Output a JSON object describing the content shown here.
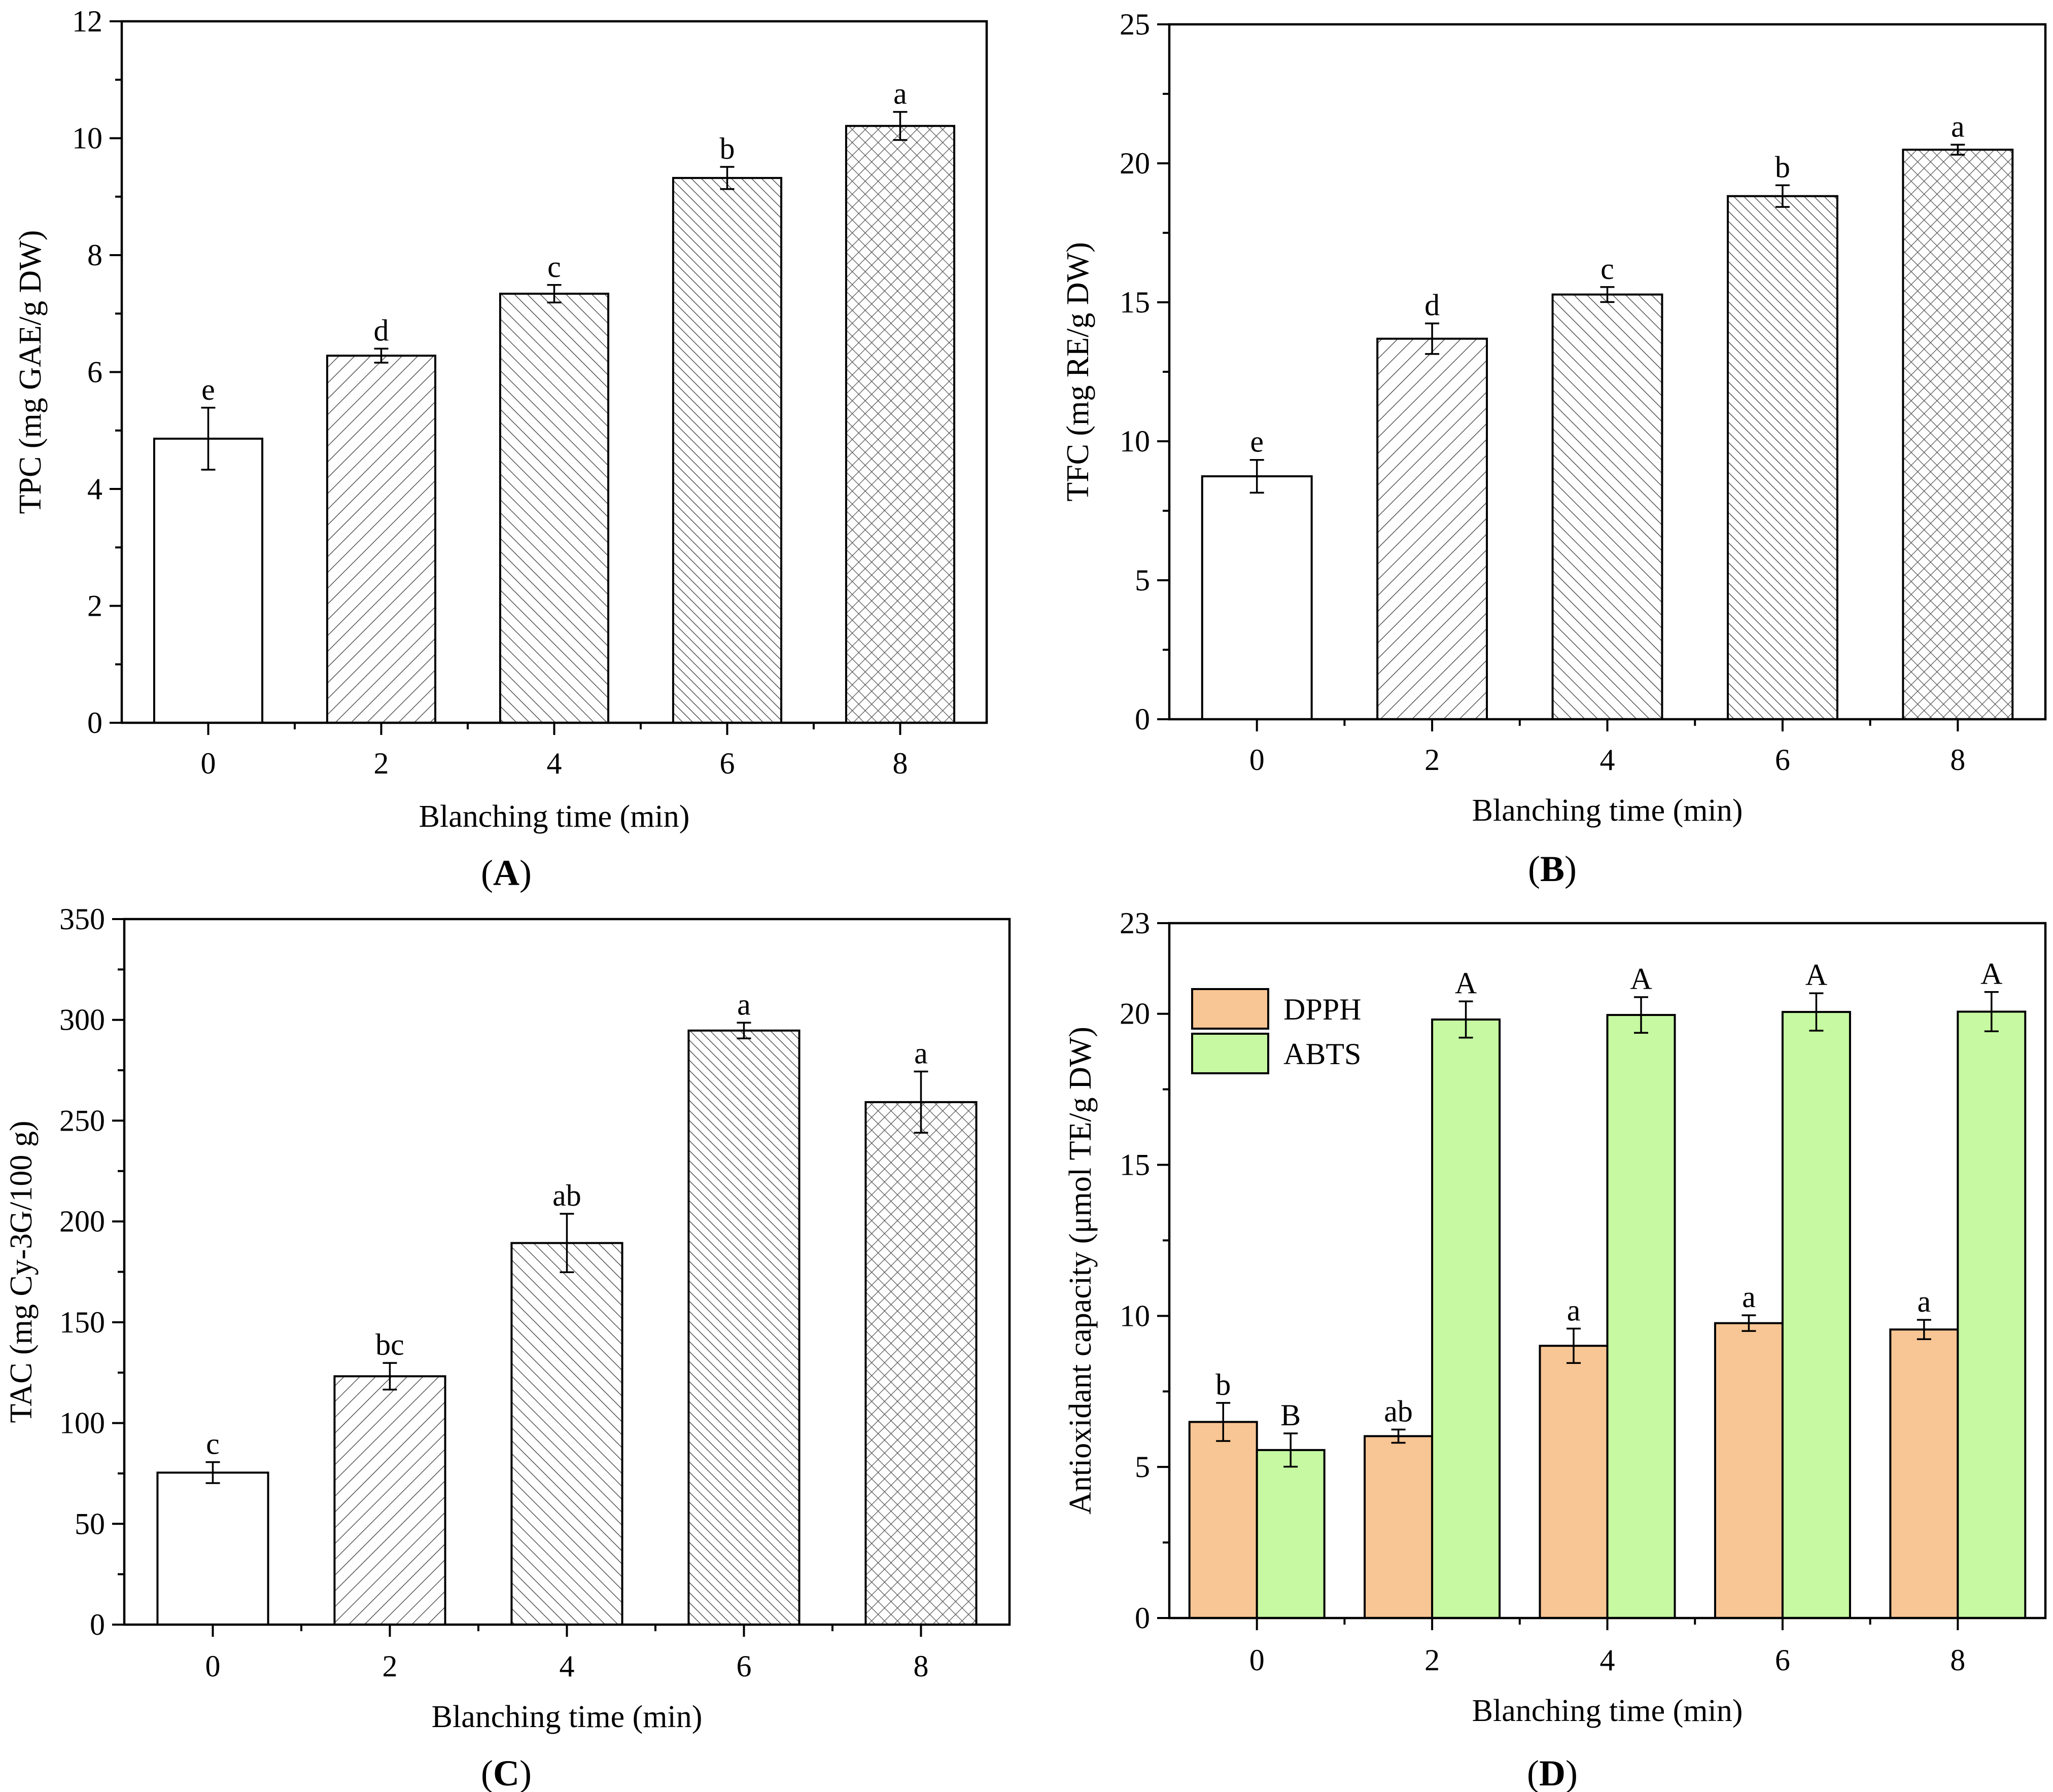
{
  "chart_data": [
    {
      "panel": "A",
      "caption_letter": "A",
      "type": "bar",
      "categories": [
        "0",
        "2",
        "4",
        "6",
        "8"
      ],
      "values": [
        4.86,
        6.28,
        7.34,
        9.32,
        10.21
      ],
      "errors": [
        0.53,
        0.12,
        0.15,
        0.19,
        0.24
      ],
      "significance": [
        "e",
        "d",
        "c",
        "b",
        "a"
      ],
      "patterns": [
        "none",
        "diag-wide",
        "diag-back-dense",
        "diag-back-dense2",
        "cross"
      ],
      "xlabel": "Blanching time (min)",
      "ylabel": "TPC (mg GAE/g DW)",
      "ylim": [
        0,
        12
      ],
      "yticks": [
        0,
        2,
        4,
        6,
        8,
        10,
        12
      ],
      "ytick_labels": [
        "0",
        "2",
        "4",
        "6",
        "8",
        "10",
        "12"
      ],
      "grid": false
    },
    {
      "panel": "B",
      "caption_letter": "B",
      "type": "bar",
      "categories": [
        "0",
        "2",
        "4",
        "6",
        "8"
      ],
      "values": [
        8.74,
        13.69,
        15.28,
        18.82,
        20.49
      ],
      "errors": [
        0.59,
        0.55,
        0.27,
        0.39,
        0.18
      ],
      "significance": [
        "e",
        "d",
        "c",
        "b",
        "a"
      ],
      "patterns": [
        "none",
        "diag-wide",
        "diag-back-dense",
        "diag-back-dense2",
        "cross"
      ],
      "xlabel": "Blanching time (min)",
      "ylabel": "TFC (mg RE/g DW)",
      "ylim": [
        0,
        25
      ],
      "yticks": [
        0,
        5,
        10,
        15,
        20,
        25
      ],
      "ytick_labels": [
        "0",
        "5",
        "10",
        "15",
        "20",
        "25"
      ],
      "grid": false
    },
    {
      "panel": "C",
      "caption_letter": "C",
      "type": "bar",
      "categories": [
        "0",
        "2",
        "4",
        "6",
        "8"
      ],
      "values": [
        75.4,
        123.2,
        189.3,
        294.7,
        259.2
      ],
      "errors": [
        5.2,
        6.6,
        14.5,
        3.9,
        15.2
      ],
      "significance": [
        "c",
        "bc",
        "ab",
        "a",
        "a"
      ],
      "patterns": [
        "none",
        "diag-wide",
        "diag-back-dense",
        "diag-back-dense2",
        "cross"
      ],
      "xlabel": "Blanching time (min)",
      "ylabel": "TAC (mg Cy-3G/100 g)",
      "ylim": [
        0,
        350
      ],
      "yticks": [
        0,
        50,
        100,
        150,
        200,
        250,
        300,
        350
      ],
      "ytick_labels": [
        "0",
        "50",
        "100",
        "150",
        "200",
        "250",
        "300",
        "350"
      ],
      "grid": false
    },
    {
      "panel": "D",
      "caption_letter": "D",
      "type": "grouped-bar",
      "categories": [
        "0",
        "2",
        "4",
        "6",
        "8"
      ],
      "series": [
        {
          "name": "DPPH",
          "color": "#f8c594",
          "values": [
            6.49,
            6.02,
            9.01,
            9.76,
            9.55
          ],
          "errors": [
            0.63,
            0.22,
            0.57,
            0.26,
            0.32
          ],
          "significance": [
            "b",
            "ab",
            "a",
            "a",
            "a"
          ]
        },
        {
          "name": "ABTS",
          "color": "#c6f9a2",
          "values": [
            5.56,
            19.81,
            19.96,
            20.06,
            20.07
          ],
          "errors": [
            0.55,
            0.6,
            0.59,
            0.62,
            0.65
          ],
          "significance": [
            "B",
            "A",
            "A",
            "A",
            "A"
          ]
        }
      ],
      "xlabel": "Blanching time (min)",
      "ylabel": "Antioxidant capacity (μmol TE/g DW)",
      "ylim": [
        0,
        23
      ],
      "yticks": [
        0,
        5,
        10,
        15,
        20,
        23
      ],
      "ytick_labels": [
        "0",
        "5",
        "10",
        "15",
        "20",
        "23"
      ],
      "legend_position": "upper-left",
      "grid": false
    }
  ]
}
